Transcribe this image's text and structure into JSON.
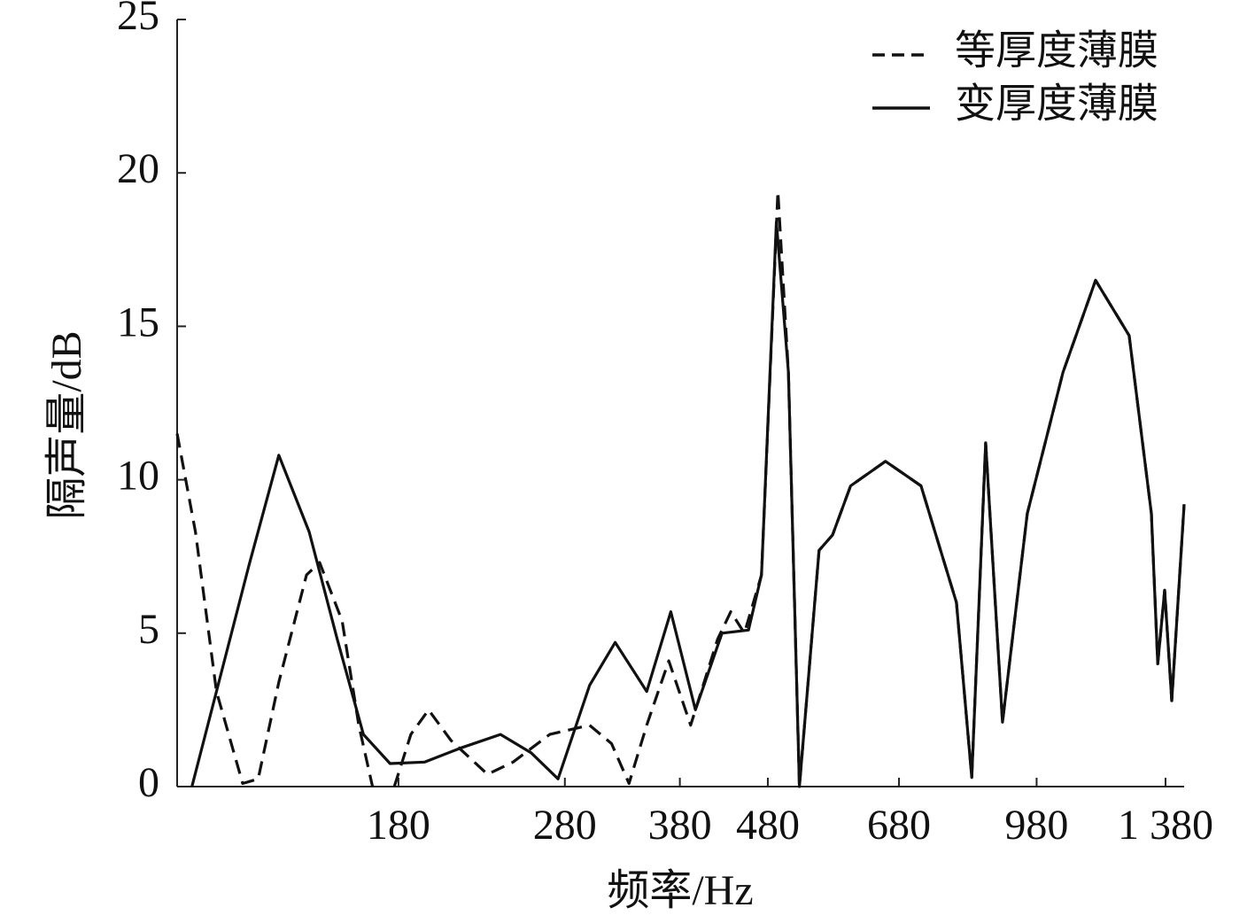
{
  "chart_data": {
    "type": "line",
    "xlabel": "频率/Hz",
    "ylabel": "隔声量/dB",
    "xscale": "log",
    "xlim": [
      100,
      1450
    ],
    "xticks": [
      180,
      280,
      380,
      480,
      680,
      980,
      {
        "value": 1380,
        "label": "1 380"
      }
    ],
    "ylim": [
      0,
      25
    ],
    "yticks": [
      0,
      5,
      10,
      15,
      20,
      25
    ],
    "legend": "upper right",
    "series": [
      {
        "name": "等厚度薄膜",
        "color": "#111111",
        "style": "dashed",
        "x": [
          100,
          105,
          111,
          119,
          124,
          131,
          141,
          146,
          155,
          162,
          168,
          173,
          178,
          186,
          195,
          207,
          228,
          244,
          269,
          299,
          317,
          332,
          348,
          369,
          391,
          420,
          435,
          451,
          472,
          493,
          507,
          522,
          550,
          570,
          598,
          656,
          721,
          792,
          825,
          856,
          895,
          956,
          1051,
          1146,
          1253,
          1329,
          1352,
          1377,
          1403,
          1450
        ],
        "values": [
          11.5,
          8.3,
          3.1,
          0.1,
          0.25,
          3.4,
          6.9,
          7.3,
          5.4,
          2,
          0,
          null,
          0,
          1.7,
          2.5,
          1.5,
          0.4,
          0.8,
          1.7,
          2,
          1.4,
          0.1,
          2,
          4.1,
          2,
          4.8,
          5.7,
          5,
          6.9,
          19.4,
          13.5,
          0,
          7.7,
          8.2,
          9.8,
          10.6,
          9.8,
          6,
          0.3,
          11.2,
          2.1,
          8.9,
          13.5,
          16.5,
          14.7,
          8.9,
          4,
          6.4,
          2.8,
          9.2
        ]
      },
      {
        "name": "变厚度薄膜",
        "color": "#111111",
        "style": "solid",
        "x": [
          104,
          111,
          121,
          131,
          142,
          153,
          164,
          176,
          193,
          212,
          236,
          256,
          275,
          299,
          320,
          348,
          371,
          396,
          425,
          456,
          472,
          491,
          507,
          522,
          550,
          570,
          598,
          656,
          721,
          792,
          825,
          856,
          895,
          956,
          1051,
          1146,
          1253,
          1329,
          1352,
          1377,
          1403,
          1450
        ],
        "values": [
          0,
          3.1,
          7.2,
          10.8,
          8.3,
          4.8,
          1.7,
          0.75,
          0.8,
          1.25,
          1.7,
          1.1,
          0.25,
          3.3,
          4.7,
          3.1,
          5.7,
          2.5,
          5,
          5.1,
          6.9,
          18.4,
          13.5,
          0,
          7.7,
          8.2,
          9.8,
          10.6,
          9.8,
          6,
          0.3,
          11.2,
          2.1,
          8.9,
          13.5,
          16.5,
          14.7,
          8.9,
          4,
          6.4,
          2.8,
          9.2
        ]
      }
    ]
  }
}
